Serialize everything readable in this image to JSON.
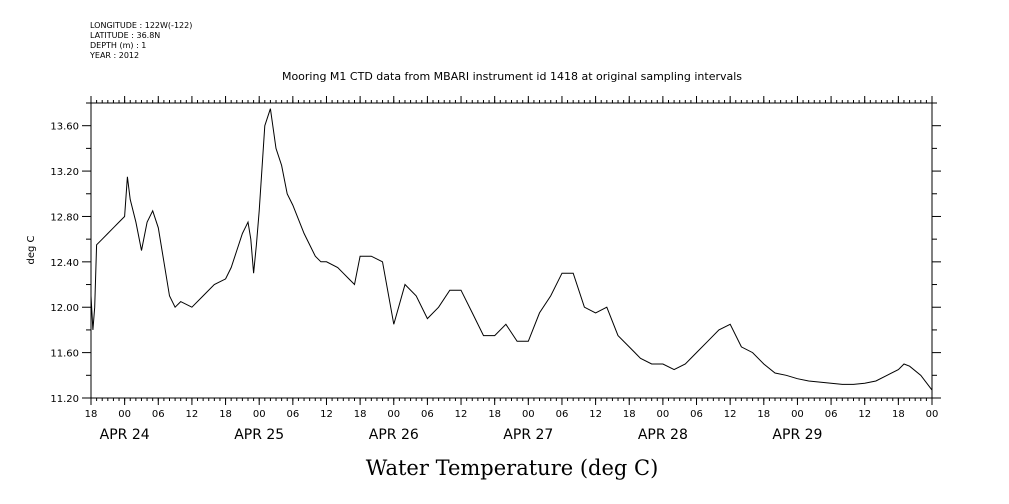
{
  "header": {
    "longitude": "LONGITUDE : 122W(-122)",
    "latitude": "LATITUDE : 36.8N",
    "depth": "DEPTH (m) : 1",
    "year": "YEAR : 2012"
  },
  "chart_data": {
    "type": "line",
    "title": "Mooring M1 CTD data from MBARI instrument id 1418 at original sampling intervals",
    "xlabel": "Water Temperature (deg C)",
    "ylabel": "deg C",
    "ylim": [
      11.2,
      13.8
    ],
    "xlim": [
      "2012-04-23T18:00",
      "2012-04-30T00:00"
    ],
    "y_tick_labels": [
      "11.20",
      "11.60",
      "12.00",
      "12.40",
      "12.80",
      "13.20",
      "13.60"
    ],
    "x_tick_labels": [
      "18",
      "00",
      "06",
      "12",
      "18",
      "00",
      "06",
      "12",
      "18",
      "00",
      "06",
      "12",
      "18",
      "00",
      "06",
      "12",
      "18",
      "00",
      "06",
      "12",
      "18",
      "00",
      "06",
      "12",
      "18",
      "00"
    ],
    "date_labels": [
      "APR 24",
      "APR 25",
      "APR 26",
      "APR 27",
      "APR 28",
      "APR 29"
    ],
    "grid": false,
    "series": [
      {
        "color": "#000000",
        "x": [
          "2012-04-23T18:00",
          "2012-04-23T18:20",
          "2012-04-23T18:40",
          "2012-04-23T19:00",
          "2012-04-23T20:00",
          "2012-04-23T21:00",
          "2012-04-23T22:00",
          "2012-04-23T23:00",
          "2012-04-24T00:00",
          "2012-04-24T00:30",
          "2012-04-24T01:00",
          "2012-04-24T02:00",
          "2012-04-24T03:00",
          "2012-04-24T04:00",
          "2012-04-24T05:00",
          "2012-04-24T06:00",
          "2012-04-24T07:00",
          "2012-04-24T08:00",
          "2012-04-24T09:00",
          "2012-04-24T10:00",
          "2012-04-24T12:00",
          "2012-04-24T14:00",
          "2012-04-24T16:00",
          "2012-04-24T18:00",
          "2012-04-24T19:00",
          "2012-04-24T20:00",
          "2012-04-24T21:00",
          "2012-04-24T21:30",
          "2012-04-24T22:00",
          "2012-04-24T22:30",
          "2012-04-24T23:00",
          "2012-04-24T23:30",
          "2012-04-25T00:00",
          "2012-04-25T01:00",
          "2012-04-25T02:00",
          "2012-04-25T03:00",
          "2012-04-25T04:00",
          "2012-04-25T05:00",
          "2012-04-25T06:00",
          "2012-04-25T08:00",
          "2012-04-25T10:00",
          "2012-04-25T11:00",
          "2012-04-25T12:00",
          "2012-04-25T14:00",
          "2012-04-25T15:00",
          "2012-04-25T16:00",
          "2012-04-25T17:00",
          "2012-04-25T18:00",
          "2012-04-25T20:00",
          "2012-04-25T22:00",
          "2012-04-26T00:00",
          "2012-04-26T02:00",
          "2012-04-26T04:00",
          "2012-04-26T06:00",
          "2012-04-26T08:00",
          "2012-04-26T10:00",
          "2012-04-26T12:00",
          "2012-04-26T14:00",
          "2012-04-26T16:00",
          "2012-04-26T18:00",
          "2012-04-26T20:00",
          "2012-04-26T22:00",
          "2012-04-27T00:00",
          "2012-04-27T02:00",
          "2012-04-27T04:00",
          "2012-04-27T06:00",
          "2012-04-27T08:00",
          "2012-04-27T10:00",
          "2012-04-27T12:00",
          "2012-04-27T14:00",
          "2012-04-27T16:00",
          "2012-04-27T18:00",
          "2012-04-27T20:00",
          "2012-04-27T22:00",
          "2012-04-28T00:00",
          "2012-04-28T02:00",
          "2012-04-28T04:00",
          "2012-04-28T06:00",
          "2012-04-28T08:00",
          "2012-04-28T10:00",
          "2012-04-28T12:00",
          "2012-04-28T14:00",
          "2012-04-28T16:00",
          "2012-04-28T18:00",
          "2012-04-28T20:00",
          "2012-04-28T22:00",
          "2012-04-29T00:00",
          "2012-04-29T02:00",
          "2012-04-29T04:00",
          "2012-04-29T06:00",
          "2012-04-29T08:00",
          "2012-04-29T10:00",
          "2012-04-29T12:00",
          "2012-04-29T14:00",
          "2012-04-29T16:00",
          "2012-04-29T18:00",
          "2012-04-29T19:00",
          "2012-04-29T20:00",
          "2012-04-29T22:00",
          "2012-04-30T00:00"
        ],
        "y": [
          12.1,
          11.8,
          12.0,
          12.55,
          12.6,
          12.65,
          12.7,
          12.75,
          12.8,
          13.15,
          12.95,
          12.75,
          12.5,
          12.75,
          12.85,
          12.7,
          12.4,
          12.1,
          12.0,
          12.05,
          12.0,
          12.1,
          12.2,
          12.25,
          12.35,
          12.5,
          12.65,
          12.7,
          12.75,
          12.6,
          12.3,
          12.55,
          12.85,
          13.6,
          13.75,
          13.4,
          13.25,
          13.0,
          12.9,
          12.65,
          12.45,
          12.4,
          12.4,
          12.35,
          12.3,
          12.25,
          12.2,
          12.45,
          12.45,
          12.4,
          11.85,
          12.2,
          12.1,
          11.9,
          12.0,
          12.15,
          12.15,
          11.95,
          11.75,
          11.75,
          11.85,
          11.7,
          11.7,
          11.95,
          12.1,
          12.3,
          12.3,
          12.0,
          11.95,
          12.0,
          11.75,
          11.65,
          11.55,
          11.5,
          11.5,
          11.45,
          11.5,
          11.6,
          11.7,
          11.8,
          11.85,
          11.65,
          11.6,
          11.5,
          11.42,
          11.4,
          11.37,
          11.35,
          11.34,
          11.33,
          11.32,
          11.32,
          11.33,
          11.35,
          11.4,
          11.45,
          11.5,
          11.48,
          11.4,
          11.27
        ]
      }
    ]
  }
}
